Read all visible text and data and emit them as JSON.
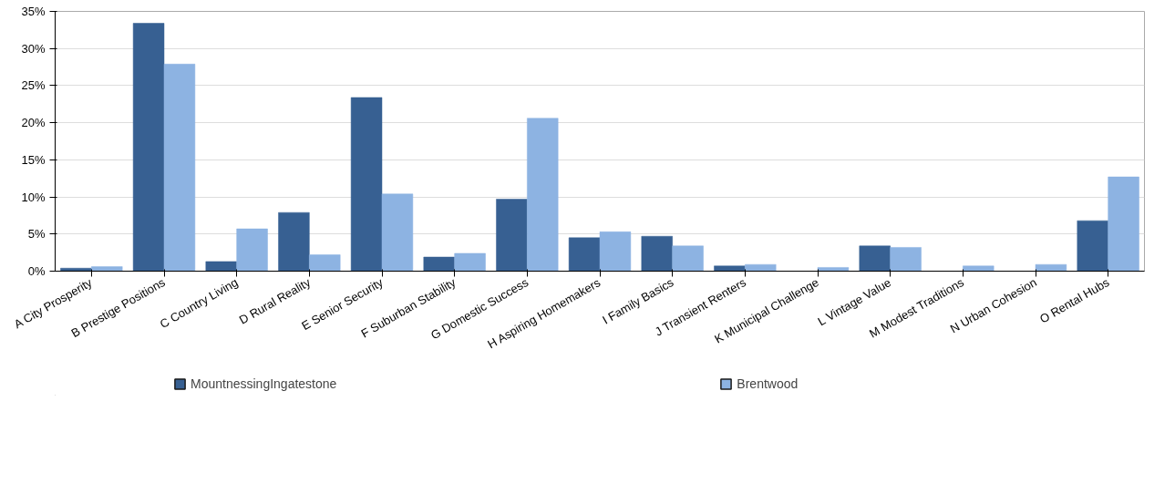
{
  "chart_data": {
    "type": "bar",
    "categories": [
      "A City Prosperity",
      "B Prestige Positions",
      "C Country Living",
      "D Rural Reality",
      "E Senior Security",
      "F Suburban Stability",
      "G Domestic Success",
      "H Aspiring Homemakers",
      "I Family Basics",
      "J Transient Renters",
      "K Municipal Challenge",
      "L Vintage Value",
      "M Modest Traditions",
      "N Urban Cohesion",
      "O Rental Hubs"
    ],
    "series": [
      {
        "name": "MountnessingIngatestone",
        "color": "#376092",
        "values": [
          0.4,
          33.4,
          1.3,
          7.9,
          23.4,
          1.9,
          9.7,
          4.5,
          4.7,
          0.7,
          0,
          3.4,
          0,
          0,
          6.8
        ]
      },
      {
        "name": "Brentwood",
        "color": "#8db3e2",
        "values": [
          0.6,
          27.9,
          5.7,
          2.2,
          10.4,
          2.4,
          20.6,
          5.3,
          3.4,
          0.9,
          0.5,
          3.2,
          0.7,
          0.9,
          12.7
        ]
      }
    ],
    "ylim": [
      0,
      35
    ],
    "yticks": [
      {
        "value": 0,
        "label": "0%"
      },
      {
        "value": 5,
        "label": "5%"
      },
      {
        "value": 10,
        "label": "10%"
      },
      {
        "value": 15,
        "label": "15%"
      },
      {
        "value": 20,
        "label": "20%"
      },
      {
        "value": 25,
        "label": "25%"
      },
      {
        "value": 30,
        "label": "30%"
      },
      {
        "value": 35,
        "label": "35%"
      }
    ],
    "grid": "y",
    "legend": "bottom"
  }
}
